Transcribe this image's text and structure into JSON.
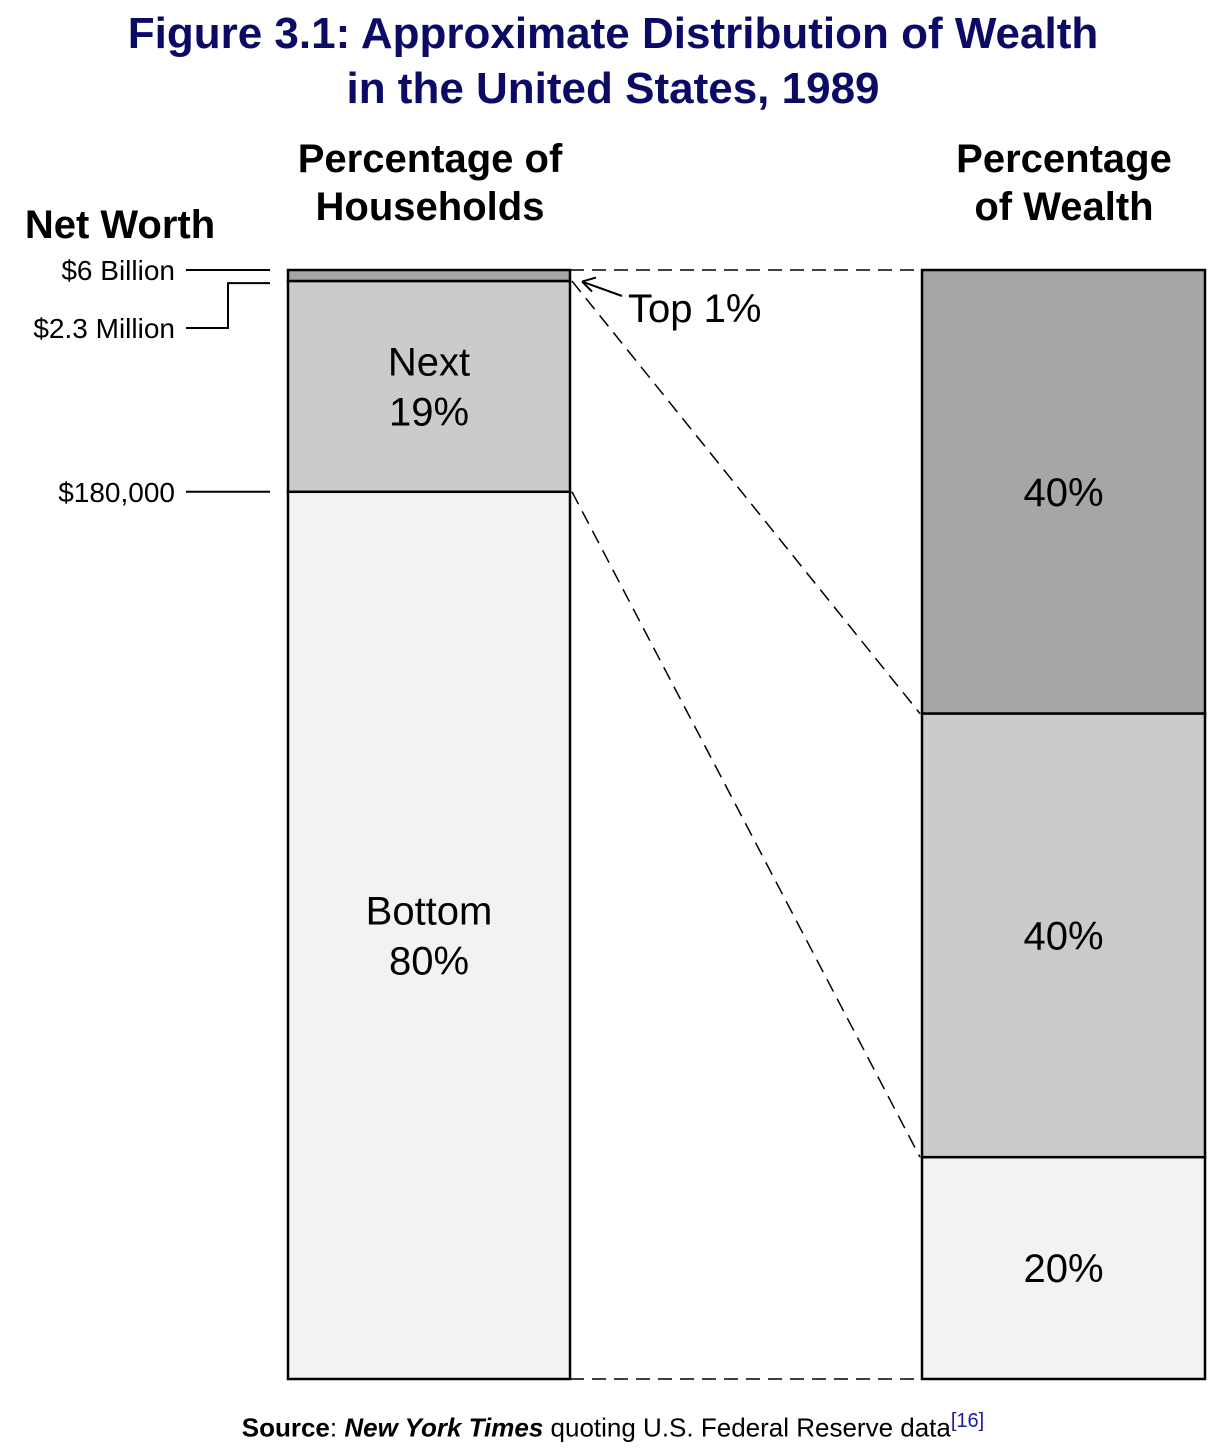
{
  "title": {
    "line1": "Figure 3.1: Approximate Distribution of Wealth",
    "line2": "in the United States, 1989"
  },
  "colors": {
    "title": "#0b0b66",
    "top": "#a6a6a6",
    "middle": "#cbcbcb",
    "bottom": "#f2f2f2",
    "citation": "#1a1aa6"
  },
  "chart_data": {
    "type": "stacked-bar",
    "bars": [
      {
        "header": [
          "Percentage of",
          "Households"
        ],
        "segments": [
          {
            "group": "Top",
            "value": 1,
            "label": [],
            "callout": "Top 1%"
          },
          {
            "group": "Next",
            "value": 19,
            "label": [
              "Next",
              "19%"
            ]
          },
          {
            "group": "Bottom",
            "value": 80,
            "label": [
              "Bottom",
              "80%"
            ]
          }
        ]
      },
      {
        "header": [
          "Percentage",
          "of Wealth"
        ],
        "segments": [
          {
            "group": "Top",
            "value": 40,
            "label": [
              "40%"
            ]
          },
          {
            "group": "Next",
            "value": 40,
            "label": [
              "40%"
            ]
          },
          {
            "group": "Bottom",
            "value": 20,
            "label": [
              "20%"
            ]
          }
        ]
      }
    ],
    "axis": {
      "title": "Net Worth",
      "ticks": [
        {
          "label": "$6 Billion",
          "at_percent": 0
        },
        {
          "label": "$2.3 Million",
          "at_percent": 1
        },
        {
          "label": "$180,000",
          "at_percent": 20
        }
      ]
    }
  },
  "source": {
    "label": "Source",
    "separator": ": ",
    "publication": "New York Times",
    "rest": " quoting U.S. Federal Reserve data",
    "citation": "[16]"
  }
}
